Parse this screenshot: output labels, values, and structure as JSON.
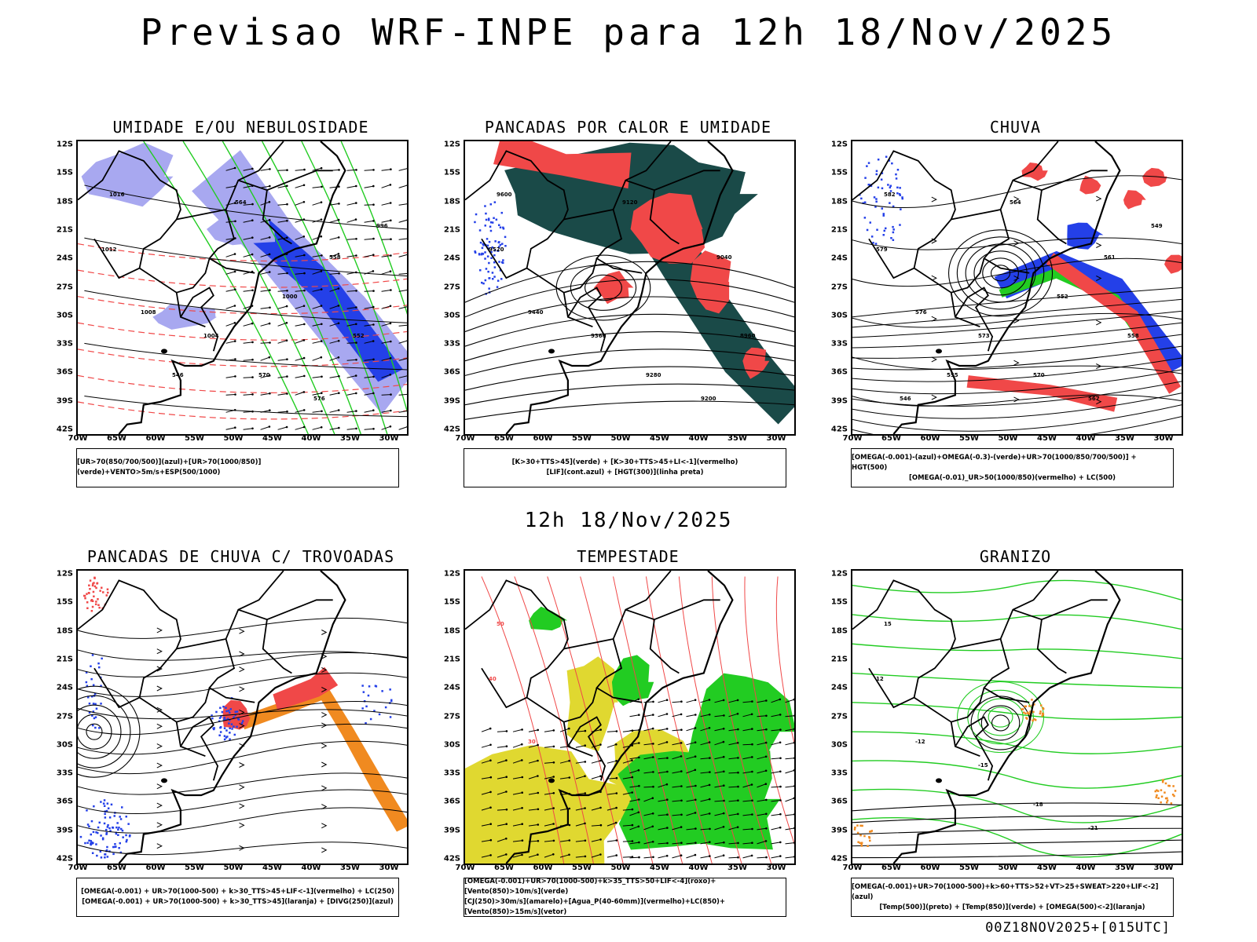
{
  "title": "Previsao WRF-INPE  para 12h 18/Nov/2025",
  "subtitle": "12h 18/Nov/2025",
  "footer": "00Z18NOV2025+[015UTC]",
  "axis": {
    "lat_labels": [
      "12S",
      "15S",
      "18S",
      "21S",
      "24S",
      "27S",
      "30S",
      "33S",
      "36S",
      "39S",
      "42S"
    ],
    "lon_labels": [
      "70W",
      "65W",
      "60W",
      "55W",
      "50W",
      "45W",
      "40W",
      "35W",
      "30W"
    ]
  },
  "panels": [
    {
      "id": "umidade",
      "title": "UMIDADE E/OU NEBULOSIDADE",
      "legend": [
        "[UR>70(850/700/500)](azul)+[UR>70(1000/850)](verde)+VENTO>5m/s+ESP(500/1000)"
      ],
      "labels": [
        "1016",
        "1012",
        "1008",
        "1004",
        "570",
        "576",
        "564",
        "558",
        "552",
        "546",
        "1000",
        "996"
      ]
    },
    {
      "id": "pancadas",
      "title": "PANCADAS POR CALOR E UMIDADE",
      "legend": [
        "[K>30+TTS>45](verde) + [K>30+TTS>45+LI<-1](vermelho)",
        "[LIF](cont.azul) + [HGT(300)](linha preta)"
      ],
      "labels": [
        "9600",
        "9520",
        "9440",
        "9360",
        "9280",
        "9200",
        "9120",
        "9040",
        "8960"
      ]
    },
    {
      "id": "chuva",
      "title": "CHUVA",
      "legend": [
        "[OMEGA(-0.001)-(azul)+OMEGA(-0.3)-(verde)+UR>70(1000/850/700/500)] + HGT(500)",
        "[OMEGA(-0.01)_UR>50(1000/850)(vermelho) + LC(500)"
      ],
      "labels": [
        "582",
        "579",
        "576",
        "573",
        "570",
        "567",
        "564",
        "561",
        "558",
        "555",
        "552",
        "549",
        "546"
      ]
    },
    {
      "id": "trovoadas",
      "title": "PANCADAS DE CHUVA C/ TROVOADAS",
      "legend": [
        "[OMEGA(-0.001) + UR>70(1000-500) + k>30_TTS>45+LIF<-1](vermelho) + LC(250)",
        "[OMEGA(-0.001) + UR>70(1000-500) + k>30_TTS>45](laranja) + [DIVG(250)](azul)"
      ],
      "labels": []
    },
    {
      "id": "tempestade",
      "title": "TEMPESTADE",
      "legend": [
        "[OMEGA(-0.001)+UR>70(1000-500)+k>35_TTS>50+LIF<-4](roxo)+[Vento(850)>10m/s](verde)",
        "[CJ(250)>30m/s](amarelo)+[Agua_P(40-60mm)](vermelho)+LC(850)+[Vento(850)>15m/s](vetor)"
      ],
      "labels": [
        "50",
        "40",
        "30"
      ]
    },
    {
      "id": "granizo",
      "title": "GRANIZO",
      "legend": [
        "[OMEGA(-0.001)+UR>70(1000-500)+k>60+TTS>52+VT>25+SWEAT>220+LIF<-2](azul)",
        "[Temp(500)](preto) + [Temp(850)](verde) + [OMEGA(500)<-2](laranja)"
      ],
      "labels": [
        "15",
        "12",
        "-12",
        "-15",
        "-18",
        "-21"
      ]
    }
  ],
  "colors": {
    "blue": "#2440e8",
    "lightblue": "#a8a8f0",
    "green": "#22cc22",
    "red": "#f04848",
    "darkteal": "#1a4a48",
    "orange": "#f08a20",
    "yellow": "#e0d830"
  }
}
